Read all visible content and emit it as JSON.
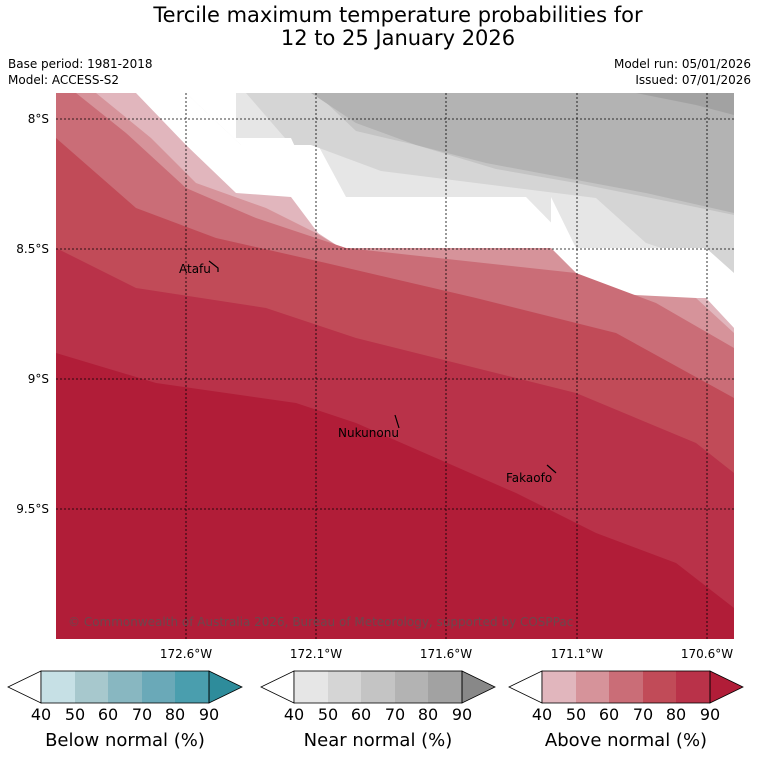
{
  "title": {
    "line1": "Tercile maximum temperature probabilities for",
    "line2": "12 to 25 January 2026"
  },
  "meta": {
    "base_period": "Base period: 1981-2018",
    "model": "Model: ACCESS-S2",
    "model_run": "Model run: 05/01/2026",
    "issued": "Issued: 07/01/2026"
  },
  "axes": {
    "lat_labels": [
      "8°S",
      "8.5°S",
      "9°S",
      "9.5°S"
    ],
    "lon_labels": [
      "172.6°W",
      "172.1°W",
      "171.6°W",
      "171.1°W",
      "170.6°W"
    ]
  },
  "places": {
    "atafu": "Atafu",
    "nukunonu": "Nukunonu",
    "fakaofo": "Fakaofo"
  },
  "copyright": "© Commonwealth of Australia 2026, Bureau of Meteorology, supported by COSPPac",
  "colors": {
    "above": [
      "#e1b6bd",
      "#d6939a",
      "#ca6d77",
      "#c14b58",
      "#b93249",
      "#b11d38"
    ],
    "near": [
      "#e6e6e6",
      "#d5d5d5",
      "#c4c4c4",
      "#b3b3b3",
      "#a2a2a2",
      "#888888"
    ],
    "below": [
      "#c6e0e5",
      "#a7c8cd",
      "#88b7c1",
      "#6aa9b8",
      "#4a9eae",
      "#2e8c9b"
    ]
  },
  "legend": {
    "ticks": [
      "40",
      "50",
      "60",
      "70",
      "80",
      "90"
    ],
    "below_title": "Below normal (%)",
    "near_title": "Near normal (%)",
    "above_title": "Above normal (%)"
  }
}
